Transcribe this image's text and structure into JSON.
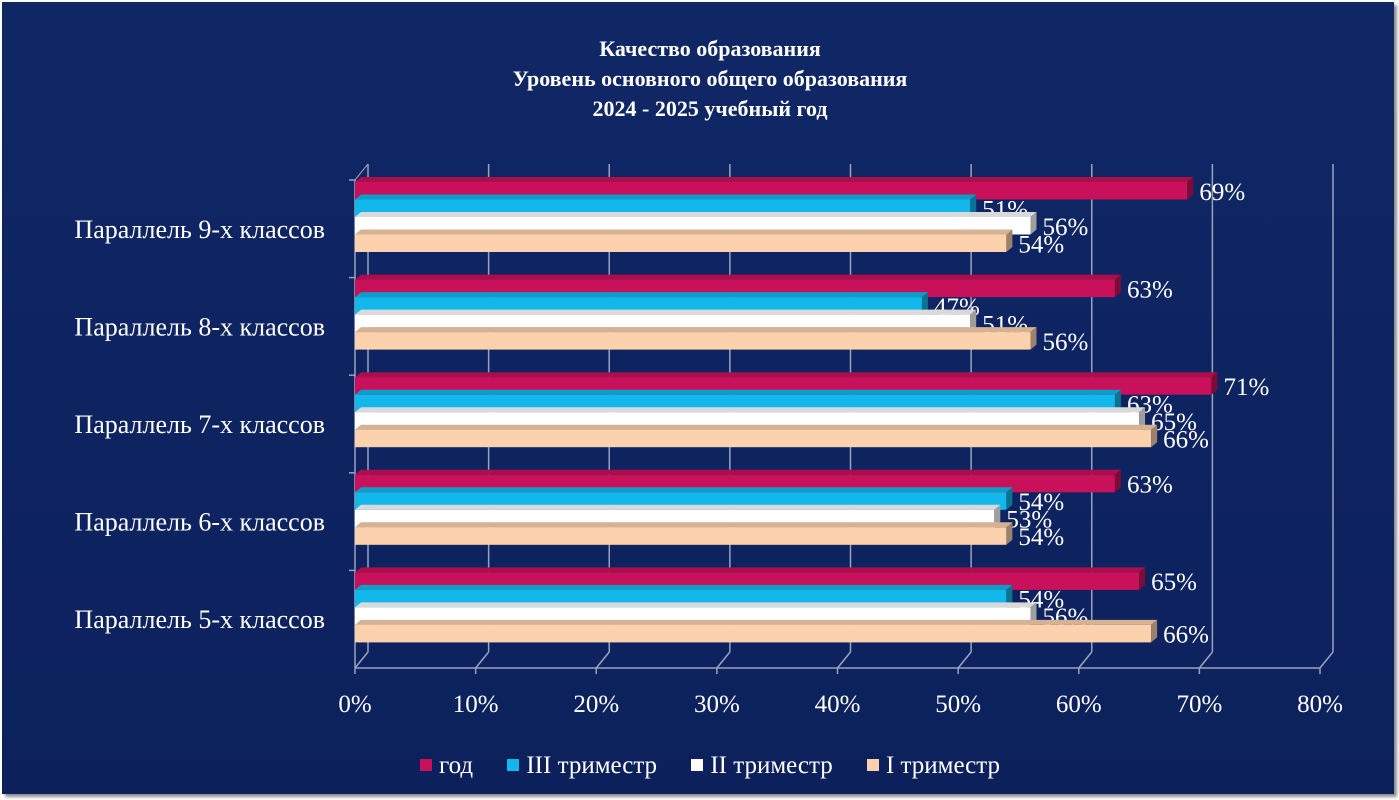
{
  "chart_data": {
    "type": "bar",
    "orientation": "horizontal",
    "title_lines": [
      "Качество образования",
      "Уровень основного общего образования",
      "2024 - 2025 учебный год"
    ],
    "categories": [
      "Параллель  9-х классов",
      "Параллель  8-х классов",
      "Параллель  7-х классов",
      "Параллель  6-х классов",
      "Параллель  5-х классов"
    ],
    "series": [
      {
        "name": "год",
        "color": "#c8115a",
        "values": [
          69,
          63,
          71,
          63,
          65
        ],
        "labels": [
          "69%",
          "63%",
          "71%",
          "63%",
          "65%"
        ]
      },
      {
        "name": "III триместр",
        "color": "#12b8ec",
        "values": [
          51,
          47,
          63,
          54,
          54
        ],
        "labels": [
          "51%",
          "47%",
          "63%",
          "54%",
          "54%"
        ]
      },
      {
        "name": "II триместр",
        "color": "#ffffff",
        "values": [
          56,
          51,
          65,
          53,
          56
        ],
        "labels": [
          "56%",
          "51%",
          "65%",
          "53%",
          "56%"
        ]
      },
      {
        "name": "I триместр",
        "color": "#fbd1ae",
        "values": [
          54,
          56,
          66,
          54,
          66
        ],
        "labels": [
          "54%",
          "56%",
          "66%",
          "54%",
          "66%"
        ]
      }
    ],
    "xlim": [
      0,
      80
    ],
    "ticks": [
      "0%",
      "10%",
      "20%",
      "30%",
      "40%",
      "50%",
      "60%",
      "70%",
      "80%"
    ],
    "grid": true,
    "legend_position": "bottom"
  }
}
